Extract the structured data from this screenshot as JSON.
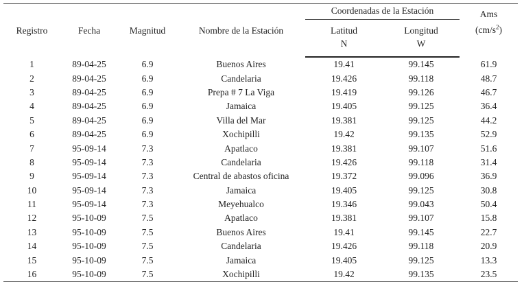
{
  "headers": {
    "registro": "Registro",
    "fecha": "Fecha",
    "magnitud": "Magnitud",
    "nombre": "Nombre de la Estación",
    "coordenadas": "Coordenadas de la Estación",
    "latitud": "Latitud",
    "latitud_unit": "N",
    "longitud": "Longitud",
    "longitud_unit": "W",
    "ams": "Ams",
    "ams_unit_base": "(cm/s",
    "ams_unit_exp": "2",
    "ams_unit_close": ")"
  },
  "rows": [
    [
      "1",
      "89-04-25",
      "6.9",
      "Buenos Aires",
      "19.41",
      "99.145",
      "61.9"
    ],
    [
      "2",
      "89-04-25",
      "6.9",
      "Candelaria",
      "19.426",
      "99.118",
      "48.7"
    ],
    [
      "3",
      "89-04-25",
      "6.9",
      "Prepa # 7 La Viga",
      "19.419",
      "99.126",
      "46.7"
    ],
    [
      "4",
      "89-04-25",
      "6.9",
      "Jamaica",
      "19.405",
      "99.125",
      "36.4"
    ],
    [
      "5",
      "89-04-25",
      "6.9",
      "Villa del Mar",
      "19.381",
      "99.125",
      "44.2"
    ],
    [
      "6",
      "89-04-25",
      "6.9",
      "Xochipilli",
      "19.42",
      "99.135",
      "52.9"
    ],
    [
      "7",
      "95-09-14",
      "7.3",
      "Apatlaco",
      "19.381",
      "99.107",
      "51.6"
    ],
    [
      "8",
      "95-09-14",
      "7.3",
      "Candelaria",
      "19.426",
      "99.118",
      "31.4"
    ],
    [
      "9",
      "95-09-14",
      "7.3",
      "Central de abastos oficina",
      "19.372",
      "99.096",
      "36.9"
    ],
    [
      "10",
      "95-09-14",
      "7.3",
      "Jamaica",
      "19.405",
      "99.125",
      "30.8"
    ],
    [
      "11",
      "95-09-14",
      "7.3",
      "Meyehualco",
      "19.346",
      "99.043",
      "50.4"
    ],
    [
      "12",
      "95-10-09",
      "7.5",
      "Apatlaco",
      "19.381",
      "99.107",
      "15.8"
    ],
    [
      "13",
      "95-10-09",
      "7.5",
      "Buenos Aires",
      "19.41",
      "99.145",
      "22.7"
    ],
    [
      "14",
      "95-10-09",
      "7.5",
      "Candelaria",
      "19.426",
      "99.118",
      "20.9"
    ],
    [
      "15",
      "95-10-09",
      "7.5",
      "Jamaica",
      "19.405",
      "99.125",
      "13.3"
    ],
    [
      "16",
      "95-10-09",
      "7.5",
      "Xochipilli",
      "19.42",
      "99.135",
      "23.5"
    ]
  ]
}
